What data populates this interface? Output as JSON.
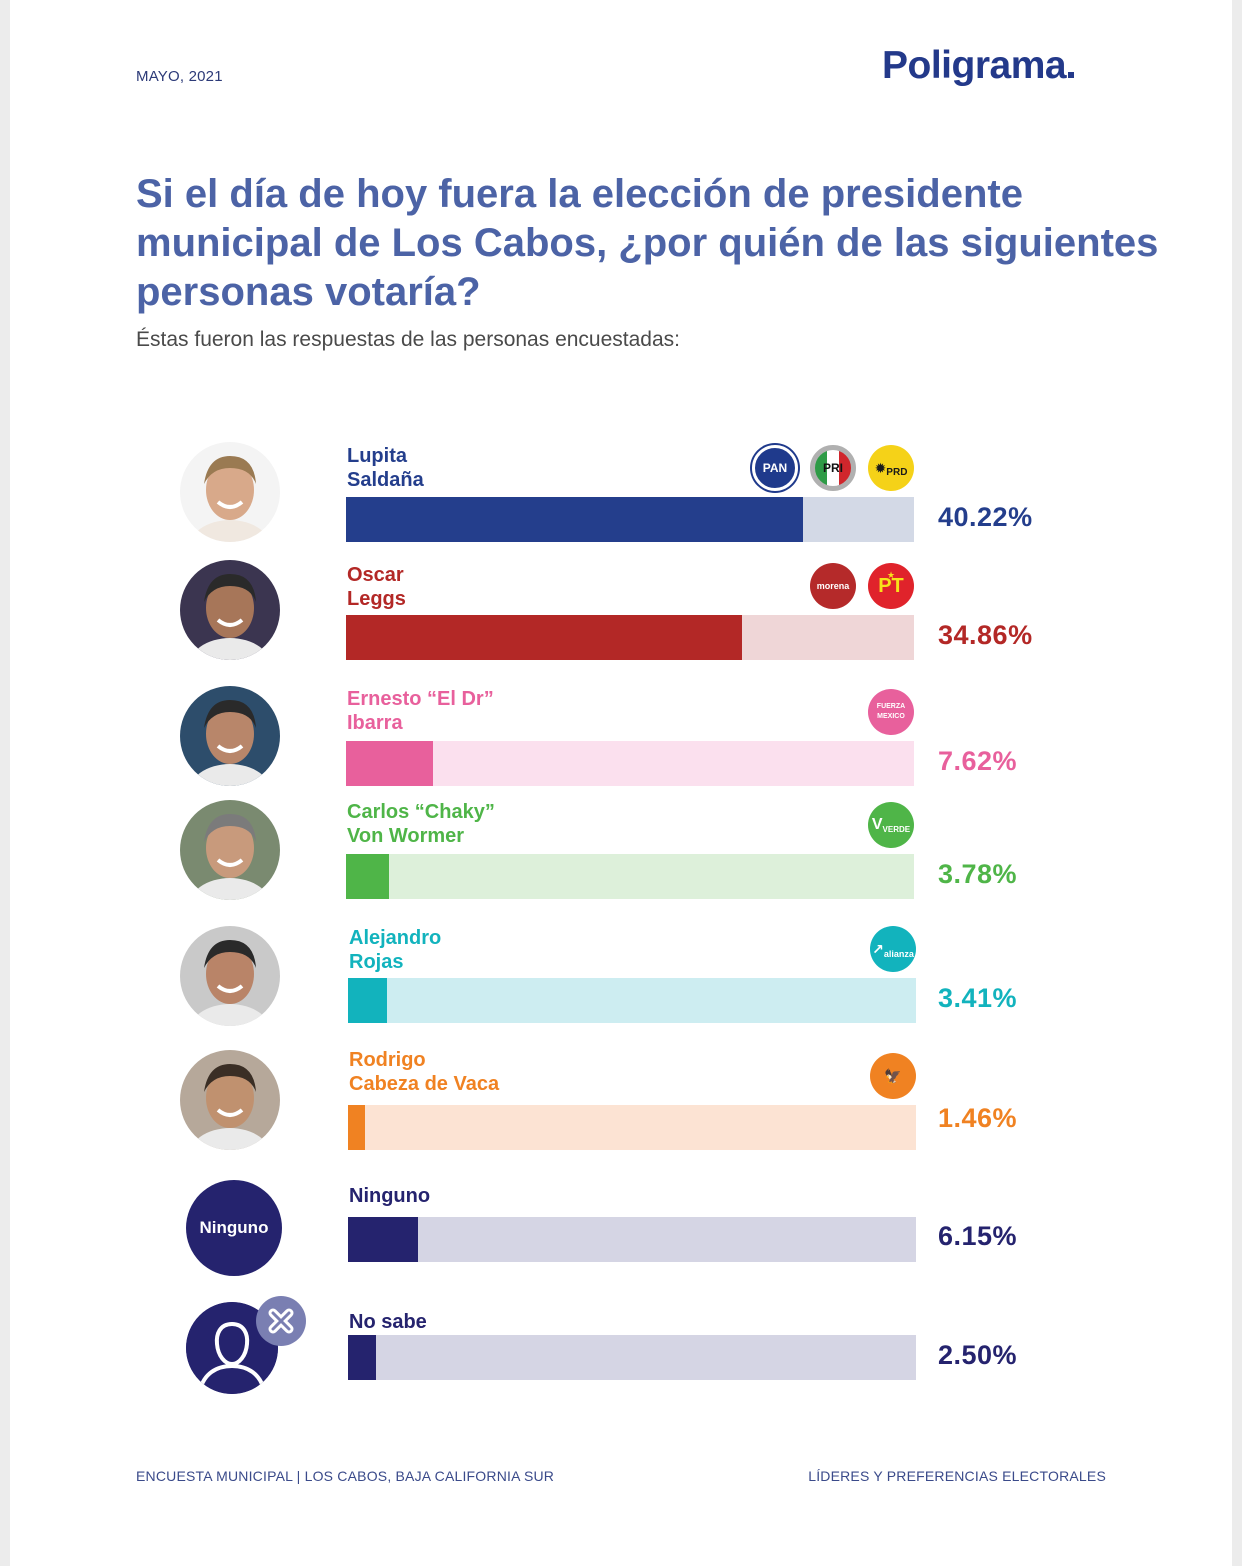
{
  "header": {
    "date": "MAYO, 2021",
    "brand": "Poligrama"
  },
  "title": "Si el día de hoy fuera la elección de presidente municipal de Los Cabos, ¿por quién de las siguientes personas votaría?",
  "subtitle": "Éstas fueron las respuestas de las personas encuestadas:",
  "footer": {
    "left": "ENCUESTA MUNICIPAL | LOS CABOS, BAJA CALIFORNIA SUR",
    "right": "LÍDERES Y PREFERENCIAS ELECTORALES"
  },
  "chart_data": {
    "type": "bar",
    "orientation": "horizontal",
    "title": "Si el día de hoy fuera la elección de presidente municipal de Los Cabos, ¿por quién de las siguientes personas votaría?",
    "xlabel": "",
    "ylabel": "",
    "xlim": [
      0,
      50
    ],
    "unit": "%",
    "grid": false,
    "categories": [
      "Lupita Saldaña",
      "Oscar Leggs",
      "Ernesto “El Dr” Ibarra",
      "Carlos “Chaky” Von Wormer",
      "Alejandro Rojas",
      "Rodrigo Cabeza de Vaca",
      "Ninguno",
      "No sabe"
    ],
    "values": [
      40.22,
      34.86,
      7.62,
      3.78,
      3.41,
      1.46,
      6.15,
      2.5
    ],
    "bars": [
      {
        "name_line1": "Lupita",
        "name_line2": "Saldaña",
        "value": 40.22,
        "label": "40.22%",
        "color": "#243e8c",
        "track_color": "#d3d9e6",
        "avatar": "photo",
        "parties": [
          {
            "label": "PAN",
            "icon": "pan-logo-icon"
          },
          {
            "label": "PRI",
            "icon": "pri-logo-icon"
          },
          {
            "label": "PRD",
            "icon": "prd-logo-icon"
          }
        ]
      },
      {
        "name_line1": "Oscar",
        "name_line2": "Leggs",
        "value": 34.86,
        "label": "34.86%",
        "color": "#b32826",
        "track_color": "#efd6d7",
        "avatar": "photo",
        "parties": [
          {
            "label": "morena",
            "icon": "morena-logo-icon"
          },
          {
            "label": "PT",
            "icon": "pt-logo-icon"
          }
        ]
      },
      {
        "name_line1": "Ernesto “El Dr”",
        "name_line2": "Ibarra",
        "value": 7.62,
        "label": "7.62%",
        "color": "#e8609c",
        "track_color": "#fbe0ee",
        "avatar": "photo",
        "parties": [
          {
            "label": "FUERZA MÉXICO",
            "icon": "fuerza-mexico-logo-icon"
          }
        ]
      },
      {
        "name_line1": "Carlos “Chaky”",
        "name_line2": "Von Wormer",
        "value": 3.78,
        "label": "3.78%",
        "color": "#4fb548",
        "track_color": "#ddf0da",
        "avatar": "photo",
        "parties": [
          {
            "label": "VERDE",
            "icon": "verde-logo-icon"
          }
        ]
      },
      {
        "name_line1": "Alejandro",
        "name_line2": "Rojas",
        "value": 3.41,
        "label": "3.41%",
        "color": "#12b3bd",
        "track_color": "#cdedf1",
        "avatar": "photo",
        "parties": [
          {
            "label": "alianza",
            "icon": "nueva-alianza-logo-icon"
          }
        ]
      },
      {
        "name_line1": "Rodrigo",
        "name_line2": "Cabeza de Vaca",
        "value": 1.46,
        "label": "1.46%",
        "color": "#f08222",
        "track_color": "#fce3d3",
        "avatar": "photo",
        "parties": [
          {
            "label": "MOVIMIENTO CIUDADANO",
            "icon": "movimiento-ciudadano-logo-icon"
          }
        ]
      },
      {
        "name_line1": "Ninguno",
        "name_line2": "",
        "value": 6.15,
        "label": "6.15%",
        "color": "#25236e",
        "track_color": "#d5d5e4",
        "avatar": "text",
        "avatar_text": "Ninguno",
        "parties": []
      },
      {
        "name_line1": "No sabe",
        "name_line2": "",
        "value": 2.5,
        "label": "2.50%",
        "color": "#25236e",
        "track_color": "#d5d5e4",
        "avatar": "person",
        "parties": []
      }
    ]
  }
}
